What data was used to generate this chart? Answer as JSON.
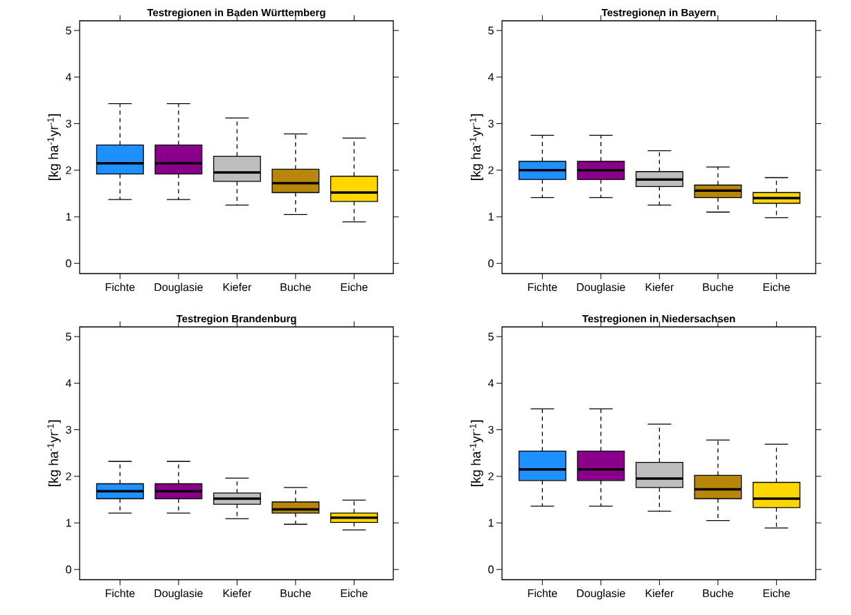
{
  "chart_data": [
    {
      "type": "box",
      "title": "Testregionen in Baden Württemberg",
      "ylabel": "[kg ha$^{-1}$yr$^{-1}$]",
      "categories": [
        "Fichte",
        "Douglasie",
        "Kiefer",
        "Buche",
        "Eiche"
      ],
      "colors": [
        "#1e90ff",
        "#8b008b",
        "#bebebe",
        "#b8860b",
        "#ffd700"
      ],
      "ylim": [
        -0.22,
        5.21
      ],
      "yticks": [
        0,
        1,
        2,
        3,
        4,
        5
      ],
      "boxes": [
        {
          "low": 1.37,
          "q1": 1.92,
          "median": 2.15,
          "q3": 2.54,
          "high": 3.43
        },
        {
          "low": 1.37,
          "q1": 1.92,
          "median": 2.15,
          "q3": 2.54,
          "high": 3.43
        },
        {
          "low": 1.25,
          "q1": 1.76,
          "median": 1.95,
          "q3": 2.3,
          "high": 3.12
        },
        {
          "low": 1.05,
          "q1": 1.52,
          "median": 1.72,
          "q3": 2.02,
          "high": 2.78
        },
        {
          "low": 0.89,
          "q1": 1.33,
          "median": 1.52,
          "q3": 1.87,
          "high": 2.69
        }
      ]
    },
    {
      "type": "box",
      "title": "Testregionen in Bayern",
      "ylabel": "[kg ha$^{-1}$yr$^{-1}$]",
      "categories": [
        "Fichte",
        "Douglasie",
        "Kiefer",
        "Buche",
        "Eiche"
      ],
      "colors": [
        "#1e90ff",
        "#8b008b",
        "#bebebe",
        "#b8860b",
        "#ffd700"
      ],
      "ylim": [
        -0.22,
        5.21
      ],
      "yticks": [
        0,
        1,
        2,
        3,
        4,
        5
      ],
      "boxes": [
        {
          "low": 1.41,
          "q1": 1.8,
          "median": 2.0,
          "q3": 2.19,
          "high": 2.75
        },
        {
          "low": 1.41,
          "q1": 1.8,
          "median": 2.0,
          "q3": 2.19,
          "high": 2.75
        },
        {
          "low": 1.25,
          "q1": 1.65,
          "median": 1.8,
          "q3": 1.97,
          "high": 2.42
        },
        {
          "low": 1.1,
          "q1": 1.41,
          "median": 1.56,
          "q3": 1.68,
          "high": 2.07
        },
        {
          "low": 0.98,
          "q1": 1.29,
          "median": 1.4,
          "q3": 1.52,
          "high": 1.84
        }
      ]
    },
    {
      "type": "box",
      "title": "Testregion Brandenburg",
      "ylabel": "[kg ha$^{-1}$yr$^{-1}$]",
      "categories": [
        "Fichte",
        "Douglasie",
        "Kiefer",
        "Buche",
        "Eiche"
      ],
      "colors": [
        "#1e90ff",
        "#8b008b",
        "#bebebe",
        "#b8860b",
        "#ffd700"
      ],
      "ylim": [
        -0.22,
        5.21
      ],
      "yticks": [
        0,
        1,
        2,
        3,
        4,
        5
      ],
      "boxes": [
        {
          "low": 1.21,
          "q1": 1.52,
          "median": 1.68,
          "q3": 1.84,
          "high": 2.32
        },
        {
          "low": 1.21,
          "q1": 1.52,
          "median": 1.68,
          "q3": 1.84,
          "high": 2.32
        },
        {
          "low": 1.09,
          "q1": 1.4,
          "median": 1.52,
          "q3": 1.64,
          "high": 1.96
        },
        {
          "low": 0.97,
          "q1": 1.21,
          "median": 1.29,
          "q3": 1.45,
          "high": 1.76
        },
        {
          "low": 0.85,
          "q1": 1.01,
          "median": 1.11,
          "q3": 1.21,
          "high": 1.49
        }
      ]
    },
    {
      "type": "box",
      "title": "Testregionen in Niedersachsen",
      "ylabel": "[kg ha$^{-1}$yr$^{-1}$]",
      "categories": [
        "Fichte",
        "Douglasie",
        "Kiefer",
        "Buche",
        "Eiche"
      ],
      "colors": [
        "#1e90ff",
        "#8b008b",
        "#bebebe",
        "#b8860b",
        "#ffd700"
      ],
      "ylim": [
        -0.22,
        5.21
      ],
      "yticks": [
        0,
        1,
        2,
        3,
        4,
        5
      ],
      "boxes": [
        {
          "low": 1.36,
          "q1": 1.91,
          "median": 2.15,
          "q3": 2.54,
          "high": 3.45
        },
        {
          "low": 1.36,
          "q1": 1.91,
          "median": 2.15,
          "q3": 2.54,
          "high": 3.45
        },
        {
          "low": 1.25,
          "q1": 1.76,
          "median": 1.95,
          "q3": 2.3,
          "high": 3.12
        },
        {
          "low": 1.05,
          "q1": 1.52,
          "median": 1.72,
          "q3": 2.02,
          "high": 2.78
        },
        {
          "low": 0.89,
          "q1": 1.33,
          "median": 1.52,
          "q3": 1.87,
          "high": 2.69
        }
      ]
    }
  ]
}
